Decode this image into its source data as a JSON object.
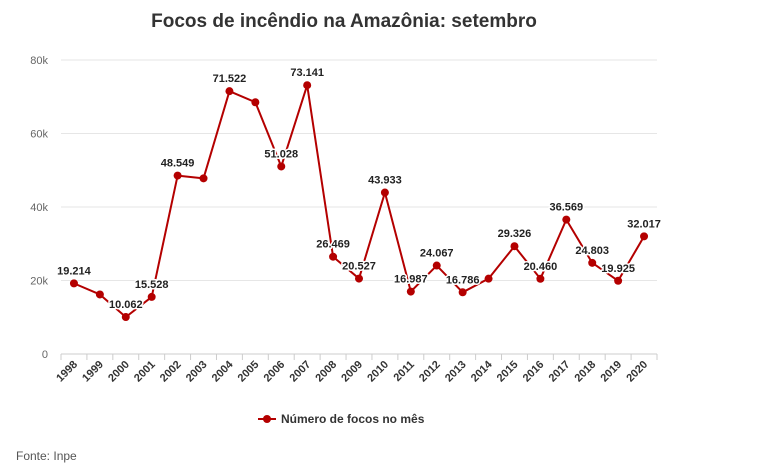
{
  "chart_data": {
    "type": "line",
    "title": "Focos de incêndio na Amazônia: setembro",
    "categories": [
      "1998",
      "1999",
      "2000",
      "2001",
      "2002",
      "2003",
      "2004",
      "2005",
      "2006",
      "2007",
      "2008",
      "2009",
      "2010",
      "2011",
      "2012",
      "2013",
      "2014",
      "2015",
      "2016",
      "2017",
      "2018",
      "2019",
      "2020"
    ],
    "series": [
      {
        "name": "Número de focos no mês",
        "color": "#b40000",
        "values": [
          19214,
          16200,
          10062,
          15528,
          48549,
          47800,
          71522,
          68500,
          51028,
          73141,
          26469,
          20527,
          43933,
          16987,
          24067,
          16786,
          20500,
          29326,
          20460,
          36569,
          24803,
          19925,
          32017
        ],
        "labels": [
          "19.214",
          "",
          "10.062",
          "15.528",
          "48.549",
          "",
          "71.522",
          "",
          "51.028",
          "73.141",
          "26.469",
          "20.527",
          "43.933",
          "16.987",
          "24.067",
          "16.786",
          "",
          "29.326",
          "20.460",
          "36.569",
          "24.803",
          "19.925",
          "32.017"
        ]
      }
    ],
    "ylim": [
      0,
      80000
    ],
    "yticks": [
      0,
      20000,
      40000,
      60000,
      80000
    ],
    "ytick_labels": [
      "0",
      "20k",
      "40k",
      "60k",
      "80k"
    ],
    "grid": true,
    "legend": "bottom"
  },
  "source": "Fonte: Inpe"
}
